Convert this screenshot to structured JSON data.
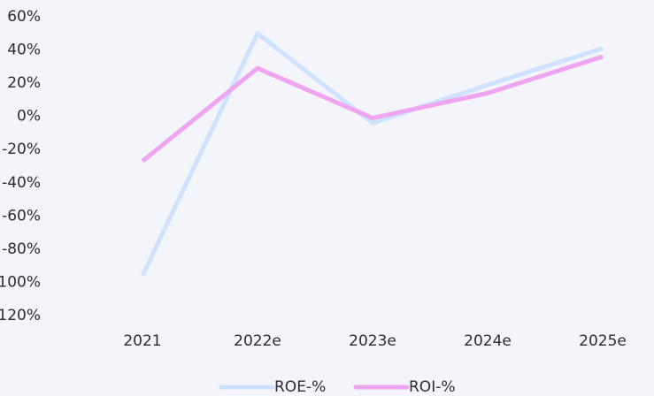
{
  "chart_data": {
    "type": "line",
    "categories": [
      "2021",
      "2022e",
      "2023e",
      "2024e",
      "2025e"
    ],
    "series": [
      {
        "name": "ROE-%",
        "color": "#cfe2ff",
        "values": [
          -96,
          50,
          -4,
          19,
          41
        ]
      },
      {
        "name": "ROI-%",
        "color": "#f0a5f0",
        "values": [
          -27,
          29,
          -1,
          14,
          36
        ]
      }
    ],
    "ylim": [
      -120,
      60
    ],
    "yticks": [
      {
        "value": -120,
        "label": "-120%"
      },
      {
        "value": -100,
        "label": "-100%"
      },
      {
        "value": -80,
        "label": "-80%"
      },
      {
        "value": -60,
        "label": "-60%"
      },
      {
        "value": -40,
        "label": "-40%"
      },
      {
        "value": -20,
        "label": "-20%"
      },
      {
        "value": 0,
        "label": "0%"
      },
      {
        "value": 20,
        "label": "20%"
      },
      {
        "value": 40,
        "label": "40%"
      },
      {
        "value": 60,
        "label": "60%"
      }
    ],
    "grid": true,
    "legend": "bottom"
  }
}
